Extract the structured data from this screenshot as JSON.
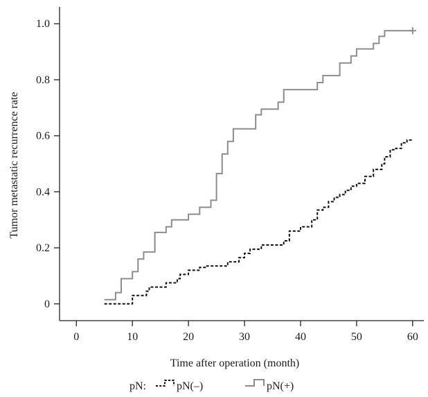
{
  "chart_data": {
    "type": "line",
    "step": true,
    "xlabel": "Time after operation (month)",
    "ylabel": "Tumor metastatic recurrence rate",
    "xlim": [
      -3,
      62
    ],
    "ylim": [
      -0.06,
      1.06
    ],
    "xticks": [
      0,
      10,
      20,
      30,
      40,
      50,
      60
    ],
    "yticks": [
      0,
      0.2,
      0.4,
      0.6,
      0.8,
      1.0
    ],
    "ytick_labels": [
      "0",
      "0.2",
      "0.4",
      "0.6",
      "0.8",
      "1.0"
    ],
    "legend": {
      "title": "pN:",
      "placement": "bottom"
    },
    "series": [
      {
        "name": "pN(–)",
        "color": "#111111",
        "dash": "dashed",
        "points": [
          [
            5,
            0.0
          ],
          [
            10,
            0.0
          ],
          [
            10,
            0.03
          ],
          [
            12.5,
            0.03
          ],
          [
            12.5,
            0.045
          ],
          [
            13,
            0.045
          ],
          [
            13,
            0.06
          ],
          [
            16,
            0.06
          ],
          [
            16,
            0.075
          ],
          [
            18,
            0.075
          ],
          [
            18,
            0.09
          ],
          [
            18.5,
            0.09
          ],
          [
            18.5,
            0.105
          ],
          [
            20,
            0.105
          ],
          [
            20,
            0.12
          ],
          [
            22,
            0.12
          ],
          [
            22,
            0.13
          ],
          [
            23,
            0.13
          ],
          [
            23,
            0.135
          ],
          [
            27,
            0.135
          ],
          [
            27,
            0.15
          ],
          [
            29,
            0.15
          ],
          [
            29,
            0.165
          ],
          [
            30,
            0.165
          ],
          [
            30,
            0.18
          ],
          [
            31,
            0.18
          ],
          [
            31,
            0.195
          ],
          [
            33,
            0.195
          ],
          [
            33,
            0.21
          ],
          [
            37,
            0.21
          ],
          [
            37,
            0.225
          ],
          [
            38,
            0.225
          ],
          [
            38,
            0.26
          ],
          [
            40,
            0.26
          ],
          [
            40,
            0.275
          ],
          [
            42,
            0.275
          ],
          [
            42,
            0.3
          ],
          [
            43,
            0.3
          ],
          [
            43,
            0.335
          ],
          [
            44,
            0.335
          ],
          [
            44,
            0.345
          ],
          [
            45,
            0.345
          ],
          [
            45,
            0.365
          ],
          [
            46,
            0.365
          ],
          [
            46,
            0.38
          ],
          [
            47,
            0.38
          ],
          [
            47,
            0.39
          ],
          [
            48,
            0.39
          ],
          [
            48,
            0.405
          ],
          [
            49,
            0.405
          ],
          [
            49,
            0.42
          ],
          [
            50,
            0.42
          ],
          [
            50,
            0.43
          ],
          [
            51.5,
            0.43
          ],
          [
            51.5,
            0.455
          ],
          [
            53,
            0.455
          ],
          [
            53,
            0.48
          ],
          [
            54.5,
            0.48
          ],
          [
            54.5,
            0.5
          ],
          [
            55,
            0.5
          ],
          [
            55,
            0.525
          ],
          [
            56,
            0.525
          ],
          [
            56,
            0.55
          ],
          [
            57,
            0.55
          ],
          [
            57,
            0.555
          ],
          [
            58,
            0.555
          ],
          [
            58,
            0.575
          ],
          [
            59,
            0.575
          ],
          [
            59,
            0.585
          ],
          [
            60,
            0.585
          ]
        ]
      },
      {
        "name": "pN(+)",
        "color": "#8c8c8c",
        "dash": "solid",
        "points": [
          [
            5,
            0.015
          ],
          [
            7,
            0.015
          ],
          [
            7,
            0.04
          ],
          [
            8,
            0.04
          ],
          [
            8,
            0.09
          ],
          [
            10,
            0.09
          ],
          [
            10,
            0.115
          ],
          [
            11,
            0.115
          ],
          [
            11,
            0.16
          ],
          [
            12,
            0.16
          ],
          [
            12,
            0.185
          ],
          [
            14,
            0.185
          ],
          [
            14,
            0.255
          ],
          [
            16,
            0.255
          ],
          [
            16,
            0.275
          ],
          [
            17,
            0.275
          ],
          [
            17,
            0.3
          ],
          [
            20,
            0.3
          ],
          [
            20,
            0.32
          ],
          [
            22,
            0.32
          ],
          [
            22,
            0.345
          ],
          [
            24,
            0.345
          ],
          [
            24,
            0.37
          ],
          [
            25,
            0.37
          ],
          [
            25,
            0.465
          ],
          [
            26,
            0.465
          ],
          [
            26,
            0.535
          ],
          [
            27,
            0.535
          ],
          [
            27,
            0.58
          ],
          [
            28,
            0.58
          ],
          [
            28,
            0.625
          ],
          [
            32,
            0.625
          ],
          [
            32,
            0.675
          ],
          [
            33,
            0.675
          ],
          [
            33,
            0.695
          ],
          [
            36,
            0.695
          ],
          [
            36,
            0.72
          ],
          [
            37,
            0.72
          ],
          [
            37,
            0.765
          ],
          [
            43,
            0.765
          ],
          [
            43,
            0.79
          ],
          [
            44,
            0.79
          ],
          [
            44,
            0.815
          ],
          [
            47,
            0.815
          ],
          [
            47,
            0.86
          ],
          [
            49,
            0.86
          ],
          [
            49,
            0.885
          ],
          [
            50,
            0.885
          ],
          [
            50,
            0.91
          ],
          [
            53,
            0.91
          ],
          [
            53,
            0.93
          ],
          [
            54,
            0.93
          ],
          [
            54,
            0.955
          ],
          [
            55,
            0.955
          ],
          [
            55,
            0.975
          ],
          [
            60,
            0.975
          ]
        ],
        "censor_mark_at": [
          60,
          0.975
        ]
      }
    ]
  }
}
